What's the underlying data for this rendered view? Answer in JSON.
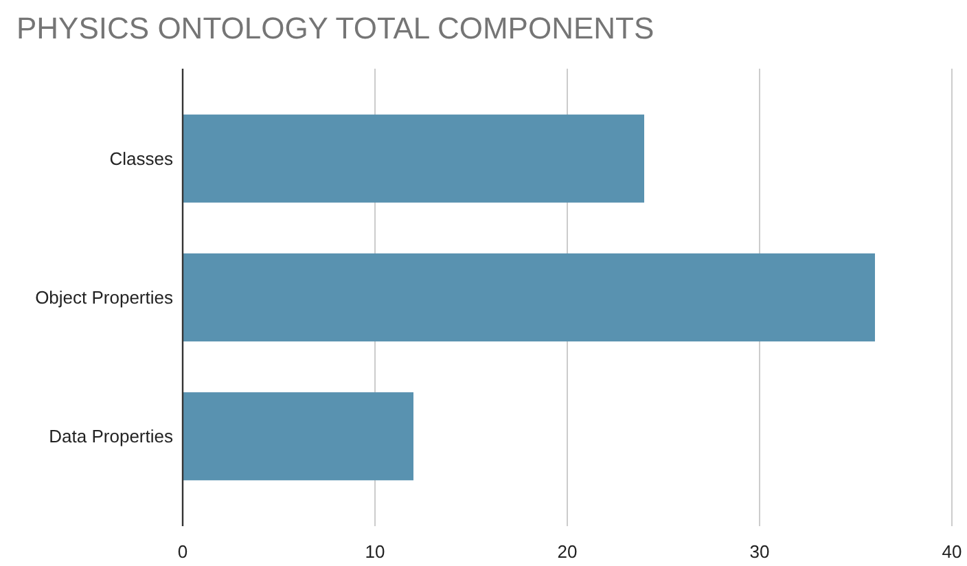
{
  "chart_data": {
    "type": "bar",
    "orientation": "horizontal",
    "title": "PHYSICS ONTOLOGY TOTAL COMPONENTS",
    "categories": [
      "Classes",
      "Object Properties",
      "Data Properties"
    ],
    "values": [
      24,
      36,
      12
    ],
    "color": "#5992b0",
    "xlim": [
      0,
      40
    ],
    "xticks": [
      0,
      10,
      20,
      30,
      40
    ],
    "grid": "x"
  }
}
